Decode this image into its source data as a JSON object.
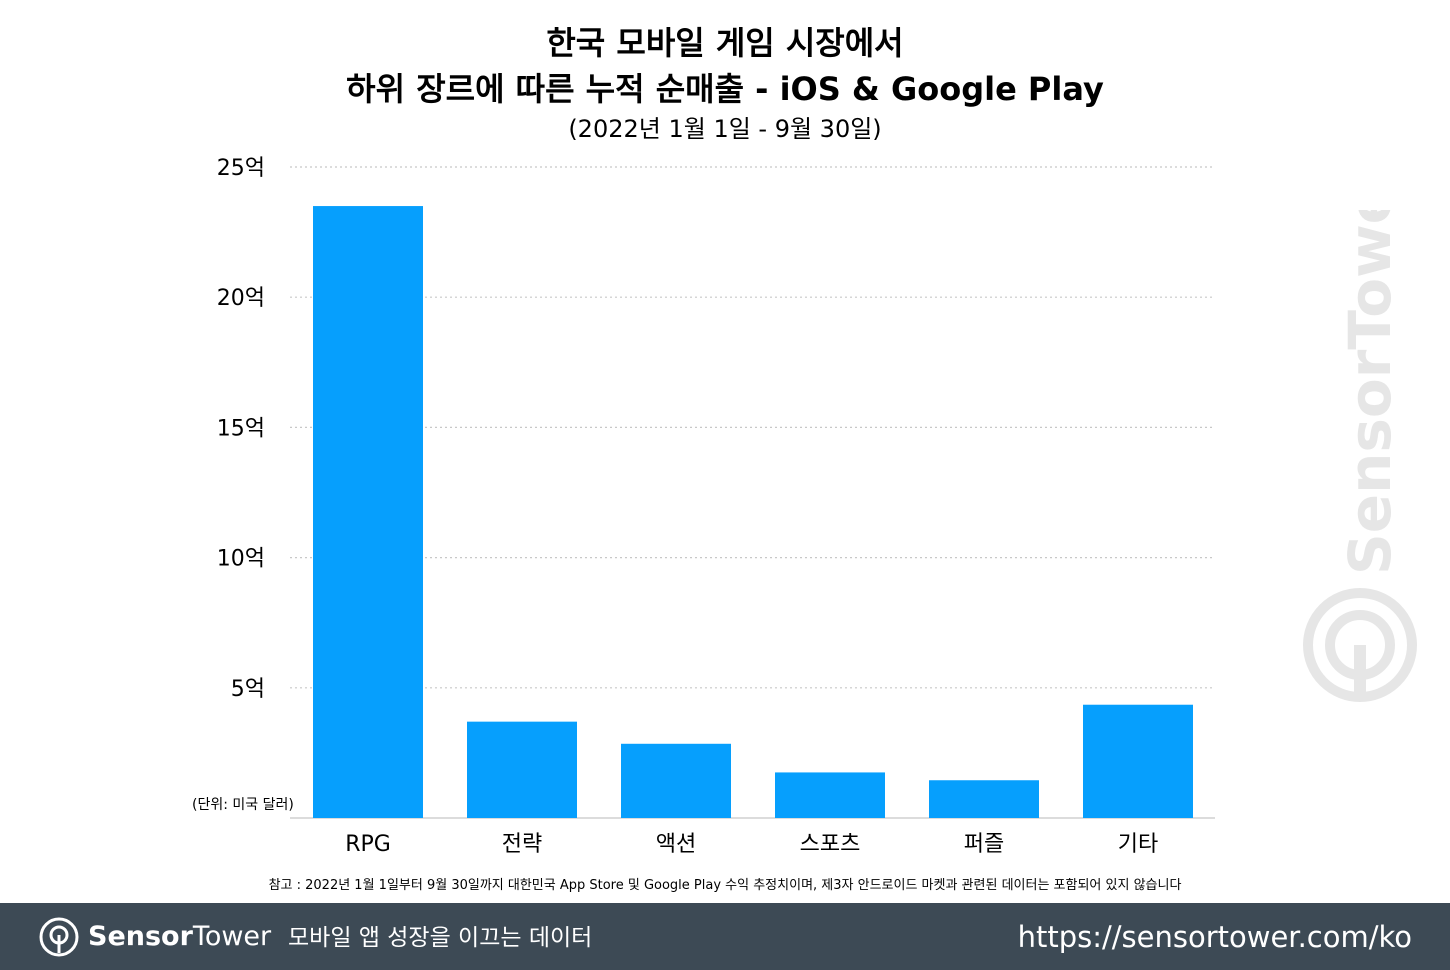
{
  "chart_data": {
    "type": "bar",
    "title_line1": "한국 모바일 게임 시장에서",
    "title_line2": "하위 장르에 따른 누적 순매출 - iOS & Google Play",
    "subtitle": "(2022년 1월 1일 - 9월 30일)",
    "categories": [
      "RPG",
      "전략",
      "액션",
      "스포츠",
      "퍼즐",
      "기타"
    ],
    "values": [
      23.5,
      3.7,
      2.85,
      1.75,
      1.45,
      4.35
    ],
    "value_unit": "억 (미국 달러)",
    "ylim": [
      0,
      25
    ],
    "yticks": [
      0,
      5,
      10,
      15,
      20,
      25
    ],
    "ytick_labels": [
      "",
      "5억",
      "10억",
      "15억",
      "20억",
      "25억"
    ],
    "unit_note": "(단위: 미국 달러)",
    "bar_color": "#069ffd",
    "grid": true
  },
  "footnote": "참고 : 2022년 1월 1일부터 9월 30일까지 대한민국 App Store 및 Google Play 수익 추정치이며, 제3자 안드로이드 마켓과 관련된 데이터는 포함되어 있지 않습니다",
  "watermark": {
    "text": "SensorTower",
    "icon": "sensortower-logo-icon"
  },
  "footer": {
    "brand_bold": "Sensor",
    "brand_regular": "Tower",
    "tagline": "모바일 앱 성장을 이끄는 데이터",
    "url": "https://sensortower.com/ko",
    "background": "#3d4a55",
    "logo_icon": "sensortower-logo-icon"
  }
}
